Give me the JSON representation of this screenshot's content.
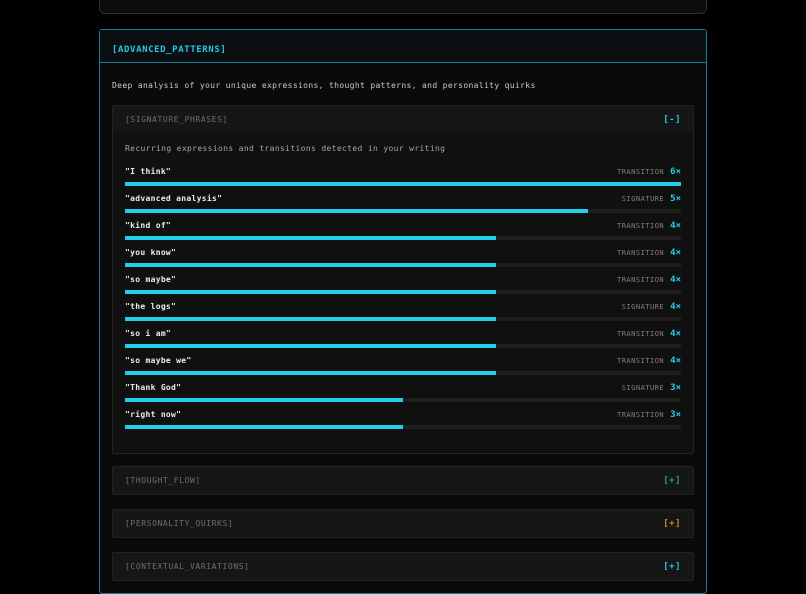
{
  "panel": {
    "title": "[ADVANCED_PATTERNS]",
    "description": "Deep analysis of your unique expressions, thought patterns, and personality quirks"
  },
  "signature_phrases": {
    "title": "[SIGNATURE_PHRASES]",
    "collapse_label": "[-]",
    "subtitle": "Recurring expressions and transitions detected in your writing",
    "max_count": 6,
    "rows": [
      {
        "phrase": "\"I think\"",
        "type": "TRANSITION",
        "count": 6,
        "count_label": "6×"
      },
      {
        "phrase": "\"advanced analysis\"",
        "type": "SIGNATURE",
        "count": 5,
        "count_label": "5×"
      },
      {
        "phrase": "\"kind of\"",
        "type": "TRANSITION",
        "count": 4,
        "count_label": "4×"
      },
      {
        "phrase": "\"you know\"",
        "type": "TRANSITION",
        "count": 4,
        "count_label": "4×"
      },
      {
        "phrase": "\"so maybe\"",
        "type": "TRANSITION",
        "count": 4,
        "count_label": "4×"
      },
      {
        "phrase": "\"the logs\"",
        "type": "SIGNATURE",
        "count": 4,
        "count_label": "4×"
      },
      {
        "phrase": "\"so i am\"",
        "type": "TRANSITION",
        "count": 4,
        "count_label": "4×"
      },
      {
        "phrase": "\"so maybe we\"",
        "type": "TRANSITION",
        "count": 4,
        "count_label": "4×"
      },
      {
        "phrase": "\"Thank God\"",
        "type": "SIGNATURE",
        "count": 3,
        "count_label": "3×"
      },
      {
        "phrase": "\"right now\"",
        "type": "TRANSITION",
        "count": 3,
        "count_label": "3×"
      }
    ]
  },
  "collapsed_sections": [
    {
      "title": "[THOUGHT_FLOW]",
      "expand_label": "[+]",
      "accent_color": "#2da56a"
    },
    {
      "title": "[PERSONALITY_QUIRKS]",
      "expand_label": "[+]",
      "accent_color": "#cf8c1d"
    },
    {
      "title": "[CONTEXTUAL_VARIATIONS]",
      "expand_label": "[+]",
      "accent_color": "#29c5e3"
    }
  ],
  "colors": {
    "accent_cyan": "#29c5e3",
    "bar_fill": "#25cdec",
    "accent_green": "#2da56a",
    "accent_amber": "#cf8c1d"
  }
}
